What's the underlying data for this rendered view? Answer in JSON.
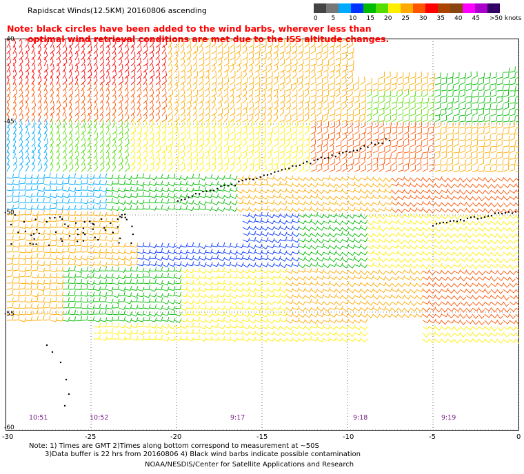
{
  "title": "Rapidscat Winds(12.5KM) 20160806 ascending",
  "note": {
    "line1": "Note: black circles have been added to the wind barbs, wherever less than",
    "line2": "optimal wind retrieval conditions are met due to the ISS altitude changes."
  },
  "legend": {
    "colors": [
      "#444444",
      "#777777",
      "#00aaff",
      "#0033ff",
      "#00bb00",
      "#55dd00",
      "#ffee00",
      "#ffaa00",
      "#ff5500",
      "#ff0000",
      "#aa4400",
      "#884411",
      "#ff00ff",
      "#aa00cc",
      "#330066"
    ],
    "labels": [
      "0",
      "5",
      "10",
      "15",
      "20",
      "25",
      "30",
      "35",
      "40",
      "45",
      ">50 knots"
    ]
  },
  "lat_labels": [
    "-40",
    "-45",
    "-50",
    "-55",
    "-60"
  ],
  "lon_labels": [
    "-30",
    "-25",
    "-20",
    "-15",
    "-10",
    "-5",
    "0"
  ],
  "times": [
    "10:51",
    "10:52",
    "9:17",
    "9:18",
    "9:19"
  ],
  "footer": {
    "line1": "Note: 1) Times are GMT 2)Times along bottom correspond to measurement at ~50S",
    "line2": "3)Data buffer is 22 hrs from 20160806 4) Black wind barbs indicate possible contamination",
    "credit": "NOAA/NESDIS/Center for Satellite Applications and Research"
  }
}
